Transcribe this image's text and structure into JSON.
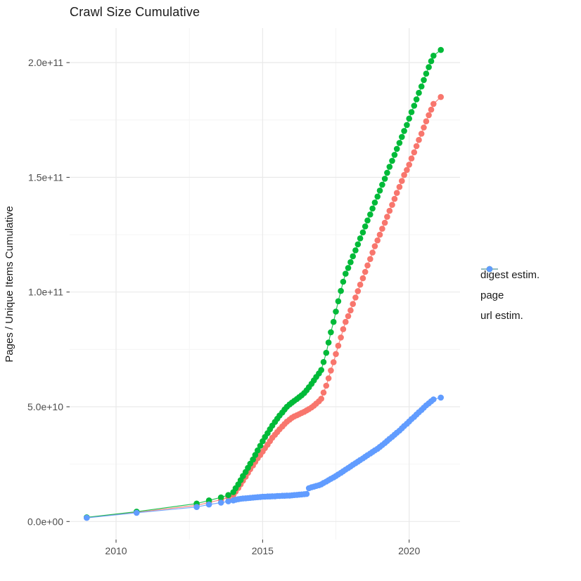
{
  "title": "Crawl Size Cumulative",
  "y_axis_title": "Pages / Unique Items Cumulative",
  "legend": {
    "items": [
      {
        "label": "digest estim.",
        "color": "#F8766D"
      },
      {
        "label": "page",
        "color": "#00BA38"
      },
      {
        "label": "url estim.",
        "color": "#619CFF"
      }
    ]
  },
  "colors": {
    "grid_major": "#E9E9E9",
    "grid_minor": "#F4F4F4",
    "tick_mark": "#333333",
    "tick_label": "#4d4d4d"
  },
  "chart_data": {
    "type": "scatter",
    "title": "Crawl Size Cumulative",
    "xlabel": "",
    "ylabel": "Pages / Unique Items Cumulative",
    "x_tick_labels": [
      "2010",
      "2015",
      "2020"
    ],
    "x_tick_values": [
      2010,
      2015,
      2020
    ],
    "x_minor_gridlines": [
      2012.5,
      2017.5
    ],
    "y_tick_labels": [
      "0.0e+00",
      "5.0e+10",
      "1.0e+11",
      "1.5e+11",
      "2.0e+11"
    ],
    "y_tick_values_e10": [
      0,
      5,
      10,
      15,
      20
    ],
    "y_minor_gridlines_e10": [
      2.5,
      7.5,
      12.5,
      17.5
    ],
    "xlim": [
      2008.4,
      2021.7
    ],
    "ylim_e10": [
      -0.8,
      21.5
    ],
    "grid": "major+minor on white panel",
    "legend_position": "right",
    "value_unit_note": "values stored in units of 1e10 pages/items",
    "series": [
      {
        "name": "digest estim.",
        "color": "#F8766D",
        "points": [
          [
            2009.0,
            0.17
          ],
          [
            2010.7,
            0.4
          ],
          [
            2012.75,
            0.7
          ],
          [
            2013.17,
            0.83
          ],
          [
            2013.58,
            0.95
          ],
          [
            2013.83,
            1.05
          ],
          [
            2014.0,
            1.15
          ],
          [
            2014.08,
            1.3
          ],
          [
            2014.17,
            1.46
          ],
          [
            2014.25,
            1.62
          ],
          [
            2014.33,
            1.78
          ],
          [
            2014.42,
            1.95
          ],
          [
            2014.5,
            2.12
          ],
          [
            2014.58,
            2.28
          ],
          [
            2014.67,
            2.44
          ],
          [
            2014.75,
            2.6
          ],
          [
            2014.83,
            2.76
          ],
          [
            2014.92,
            2.9
          ],
          [
            2015.0,
            3.05
          ],
          [
            2015.08,
            3.2
          ],
          [
            2015.17,
            3.35
          ],
          [
            2015.25,
            3.5
          ],
          [
            2015.33,
            3.65
          ],
          [
            2015.42,
            3.78
          ],
          [
            2015.5,
            3.9
          ],
          [
            2015.58,
            4.02
          ],
          [
            2015.67,
            4.14
          ],
          [
            2015.75,
            4.25
          ],
          [
            2015.83,
            4.35
          ],
          [
            2015.92,
            4.44
          ],
          [
            2016.0,
            4.52
          ],
          [
            2016.08,
            4.58
          ],
          [
            2016.17,
            4.63
          ],
          [
            2016.25,
            4.68
          ],
          [
            2016.33,
            4.73
          ],
          [
            2016.42,
            4.78
          ],
          [
            2016.5,
            4.84
          ],
          [
            2016.58,
            4.9
          ],
          [
            2016.67,
            4.97
          ],
          [
            2016.75,
            5.05
          ],
          [
            2016.83,
            5.14
          ],
          [
            2016.92,
            5.24
          ],
          [
            2017.0,
            5.35
          ],
          [
            2017.08,
            5.62
          ],
          [
            2017.17,
            5.92
          ],
          [
            2017.25,
            6.24
          ],
          [
            2017.33,
            6.58
          ],
          [
            2017.42,
            6.94
          ],
          [
            2017.5,
            7.3
          ],
          [
            2017.58,
            7.66
          ],
          [
            2017.67,
            8.02
          ],
          [
            2017.75,
            8.38
          ],
          [
            2017.83,
            8.7
          ],
          [
            2017.92,
            8.95
          ],
          [
            2018.0,
            9.2
          ],
          [
            2018.08,
            9.48
          ],
          [
            2018.17,
            9.76
          ],
          [
            2018.25,
            10.04
          ],
          [
            2018.33,
            10.32
          ],
          [
            2018.42,
            10.6
          ],
          [
            2018.5,
            10.88
          ],
          [
            2018.58,
            11.16
          ],
          [
            2018.67,
            11.44
          ],
          [
            2018.75,
            11.72
          ],
          [
            2018.83,
            12.0
          ],
          [
            2018.92,
            12.25
          ],
          [
            2019.0,
            12.5
          ],
          [
            2019.08,
            12.76
          ],
          [
            2019.17,
            13.02
          ],
          [
            2019.25,
            13.28
          ],
          [
            2019.33,
            13.54
          ],
          [
            2019.42,
            13.8
          ],
          [
            2019.5,
            14.06
          ],
          [
            2019.58,
            14.32
          ],
          [
            2019.67,
            14.58
          ],
          [
            2019.75,
            14.84
          ],
          [
            2019.83,
            15.1
          ],
          [
            2019.92,
            15.32
          ],
          [
            2020.0,
            15.55
          ],
          [
            2020.08,
            15.82
          ],
          [
            2020.17,
            16.09
          ],
          [
            2020.25,
            16.36
          ],
          [
            2020.33,
            16.63
          ],
          [
            2020.42,
            16.9
          ],
          [
            2020.5,
            17.17
          ],
          [
            2020.58,
            17.44
          ],
          [
            2020.67,
            17.71
          ],
          [
            2020.75,
            17.95
          ],
          [
            2020.83,
            18.2
          ],
          [
            2021.08,
            18.5
          ]
        ]
      },
      {
        "name": "page",
        "color": "#00BA38",
        "points": [
          [
            2009.0,
            0.18
          ],
          [
            2010.7,
            0.43
          ],
          [
            2012.75,
            0.78
          ],
          [
            2013.17,
            0.92
          ],
          [
            2013.58,
            1.05
          ],
          [
            2013.83,
            1.15
          ],
          [
            2014.0,
            1.28
          ],
          [
            2014.08,
            1.45
          ],
          [
            2014.17,
            1.62
          ],
          [
            2014.25,
            1.8
          ],
          [
            2014.33,
            1.98
          ],
          [
            2014.42,
            2.16
          ],
          [
            2014.5,
            2.34
          ],
          [
            2014.58,
            2.52
          ],
          [
            2014.67,
            2.7
          ],
          [
            2014.75,
            2.9
          ],
          [
            2014.83,
            3.1
          ],
          [
            2014.92,
            3.3
          ],
          [
            2015.0,
            3.5
          ],
          [
            2015.08,
            3.68
          ],
          [
            2015.17,
            3.85
          ],
          [
            2015.25,
            4.02
          ],
          [
            2015.33,
            4.18
          ],
          [
            2015.42,
            4.34
          ],
          [
            2015.5,
            4.48
          ],
          [
            2015.58,
            4.62
          ],
          [
            2015.67,
            4.75
          ],
          [
            2015.75,
            4.88
          ],
          [
            2015.83,
            5.0
          ],
          [
            2015.92,
            5.1
          ],
          [
            2016.0,
            5.18
          ],
          [
            2016.08,
            5.26
          ],
          [
            2016.17,
            5.34
          ],
          [
            2016.25,
            5.42
          ],
          [
            2016.33,
            5.5
          ],
          [
            2016.42,
            5.6
          ],
          [
            2016.5,
            5.72
          ],
          [
            2016.58,
            5.85
          ],
          [
            2016.67,
            6.0
          ],
          [
            2016.75,
            6.15
          ],
          [
            2016.83,
            6.3
          ],
          [
            2016.92,
            6.45
          ],
          [
            2017.0,
            6.6
          ],
          [
            2017.08,
            6.95
          ],
          [
            2017.17,
            7.35
          ],
          [
            2017.25,
            7.8
          ],
          [
            2017.33,
            8.25
          ],
          [
            2017.42,
            8.7
          ],
          [
            2017.5,
            9.15
          ],
          [
            2017.58,
            9.6
          ],
          [
            2017.67,
            10.05
          ],
          [
            2017.75,
            10.45
          ],
          [
            2017.83,
            10.8
          ],
          [
            2017.92,
            11.05
          ],
          [
            2018.0,
            11.3
          ],
          [
            2018.08,
            11.56
          ],
          [
            2018.17,
            11.82
          ],
          [
            2018.25,
            12.08
          ],
          [
            2018.33,
            12.34
          ],
          [
            2018.42,
            12.6
          ],
          [
            2018.5,
            12.86
          ],
          [
            2018.58,
            13.12
          ],
          [
            2018.67,
            13.38
          ],
          [
            2018.75,
            13.64
          ],
          [
            2018.83,
            13.9
          ],
          [
            2018.92,
            14.16
          ],
          [
            2019.0,
            14.42
          ],
          [
            2019.08,
            14.68
          ],
          [
            2019.17,
            14.94
          ],
          [
            2019.25,
            15.2
          ],
          [
            2019.33,
            15.46
          ],
          [
            2019.42,
            15.72
          ],
          [
            2019.5,
            15.98
          ],
          [
            2019.58,
            16.24
          ],
          [
            2019.67,
            16.5
          ],
          [
            2019.75,
            16.76
          ],
          [
            2019.83,
            17.02
          ],
          [
            2019.92,
            17.28
          ],
          [
            2020.0,
            17.56
          ],
          [
            2020.08,
            17.84
          ],
          [
            2020.17,
            18.12
          ],
          [
            2020.25,
            18.4
          ],
          [
            2020.33,
            18.68
          ],
          [
            2020.42,
            18.96
          ],
          [
            2020.5,
            19.24
          ],
          [
            2020.58,
            19.52
          ],
          [
            2020.67,
            19.8
          ],
          [
            2020.75,
            20.06
          ],
          [
            2020.83,
            20.3
          ],
          [
            2021.08,
            20.55
          ]
        ]
      },
      {
        "name": "url estim.",
        "color": "#619CFF",
        "points": [
          [
            2009.0,
            0.16
          ],
          [
            2010.7,
            0.38
          ],
          [
            2012.75,
            0.63
          ],
          [
            2013.17,
            0.74
          ],
          [
            2013.58,
            0.82
          ],
          [
            2013.83,
            0.88
          ],
          [
            2014.0,
            0.92
          ],
          [
            2014.08,
            0.95
          ],
          [
            2014.17,
            0.97
          ],
          [
            2014.25,
            0.99
          ],
          [
            2014.33,
            1.0
          ],
          [
            2014.42,
            1.01
          ],
          [
            2014.5,
            1.02
          ],
          [
            2014.58,
            1.03
          ],
          [
            2014.67,
            1.04
          ],
          [
            2014.75,
            1.05
          ],
          [
            2014.83,
            1.06
          ],
          [
            2014.92,
            1.07
          ],
          [
            2015.0,
            1.08
          ],
          [
            2015.08,
            1.08
          ],
          [
            2015.17,
            1.09
          ],
          [
            2015.25,
            1.09
          ],
          [
            2015.33,
            1.1
          ],
          [
            2015.42,
            1.1
          ],
          [
            2015.5,
            1.11
          ],
          [
            2015.58,
            1.11
          ],
          [
            2015.67,
            1.12
          ],
          [
            2015.75,
            1.12
          ],
          [
            2015.83,
            1.13
          ],
          [
            2015.92,
            1.13
          ],
          [
            2016.0,
            1.14
          ],
          [
            2016.08,
            1.15
          ],
          [
            2016.17,
            1.16
          ],
          [
            2016.25,
            1.17
          ],
          [
            2016.33,
            1.18
          ],
          [
            2016.42,
            1.19
          ],
          [
            2016.5,
            1.2
          ],
          [
            2016.58,
            1.45
          ],
          [
            2016.67,
            1.49
          ],
          [
            2016.75,
            1.52
          ],
          [
            2016.83,
            1.55
          ],
          [
            2016.92,
            1.58
          ],
          [
            2017.0,
            1.62
          ],
          [
            2017.08,
            1.68
          ],
          [
            2017.17,
            1.74
          ],
          [
            2017.25,
            1.8
          ],
          [
            2017.33,
            1.86
          ],
          [
            2017.42,
            1.92
          ],
          [
            2017.5,
            1.98
          ],
          [
            2017.58,
            2.05
          ],
          [
            2017.67,
            2.12
          ],
          [
            2017.75,
            2.19
          ],
          [
            2017.83,
            2.26
          ],
          [
            2017.92,
            2.33
          ],
          [
            2018.0,
            2.4
          ],
          [
            2018.08,
            2.47
          ],
          [
            2018.17,
            2.54
          ],
          [
            2018.25,
            2.61
          ],
          [
            2018.33,
            2.68
          ],
          [
            2018.42,
            2.75
          ],
          [
            2018.5,
            2.82
          ],
          [
            2018.58,
            2.89
          ],
          [
            2018.67,
            2.96
          ],
          [
            2018.75,
            3.03
          ],
          [
            2018.83,
            3.1
          ],
          [
            2018.92,
            3.17
          ],
          [
            2019.0,
            3.25
          ],
          [
            2019.08,
            3.33
          ],
          [
            2019.17,
            3.42
          ],
          [
            2019.25,
            3.51
          ],
          [
            2019.33,
            3.6
          ],
          [
            2019.42,
            3.69
          ],
          [
            2019.5,
            3.78
          ],
          [
            2019.58,
            3.87
          ],
          [
            2019.67,
            3.96
          ],
          [
            2019.75,
            4.06
          ],
          [
            2019.83,
            4.16
          ],
          [
            2019.92,
            4.26
          ],
          [
            2020.0,
            4.36
          ],
          [
            2020.08,
            4.46
          ],
          [
            2020.17,
            4.56
          ],
          [
            2020.25,
            4.66
          ],
          [
            2020.33,
            4.76
          ],
          [
            2020.42,
            4.86
          ],
          [
            2020.5,
            4.96
          ],
          [
            2020.58,
            5.06
          ],
          [
            2020.67,
            5.15
          ],
          [
            2020.75,
            5.24
          ],
          [
            2020.83,
            5.32
          ],
          [
            2021.08,
            5.4
          ]
        ]
      }
    ]
  }
}
